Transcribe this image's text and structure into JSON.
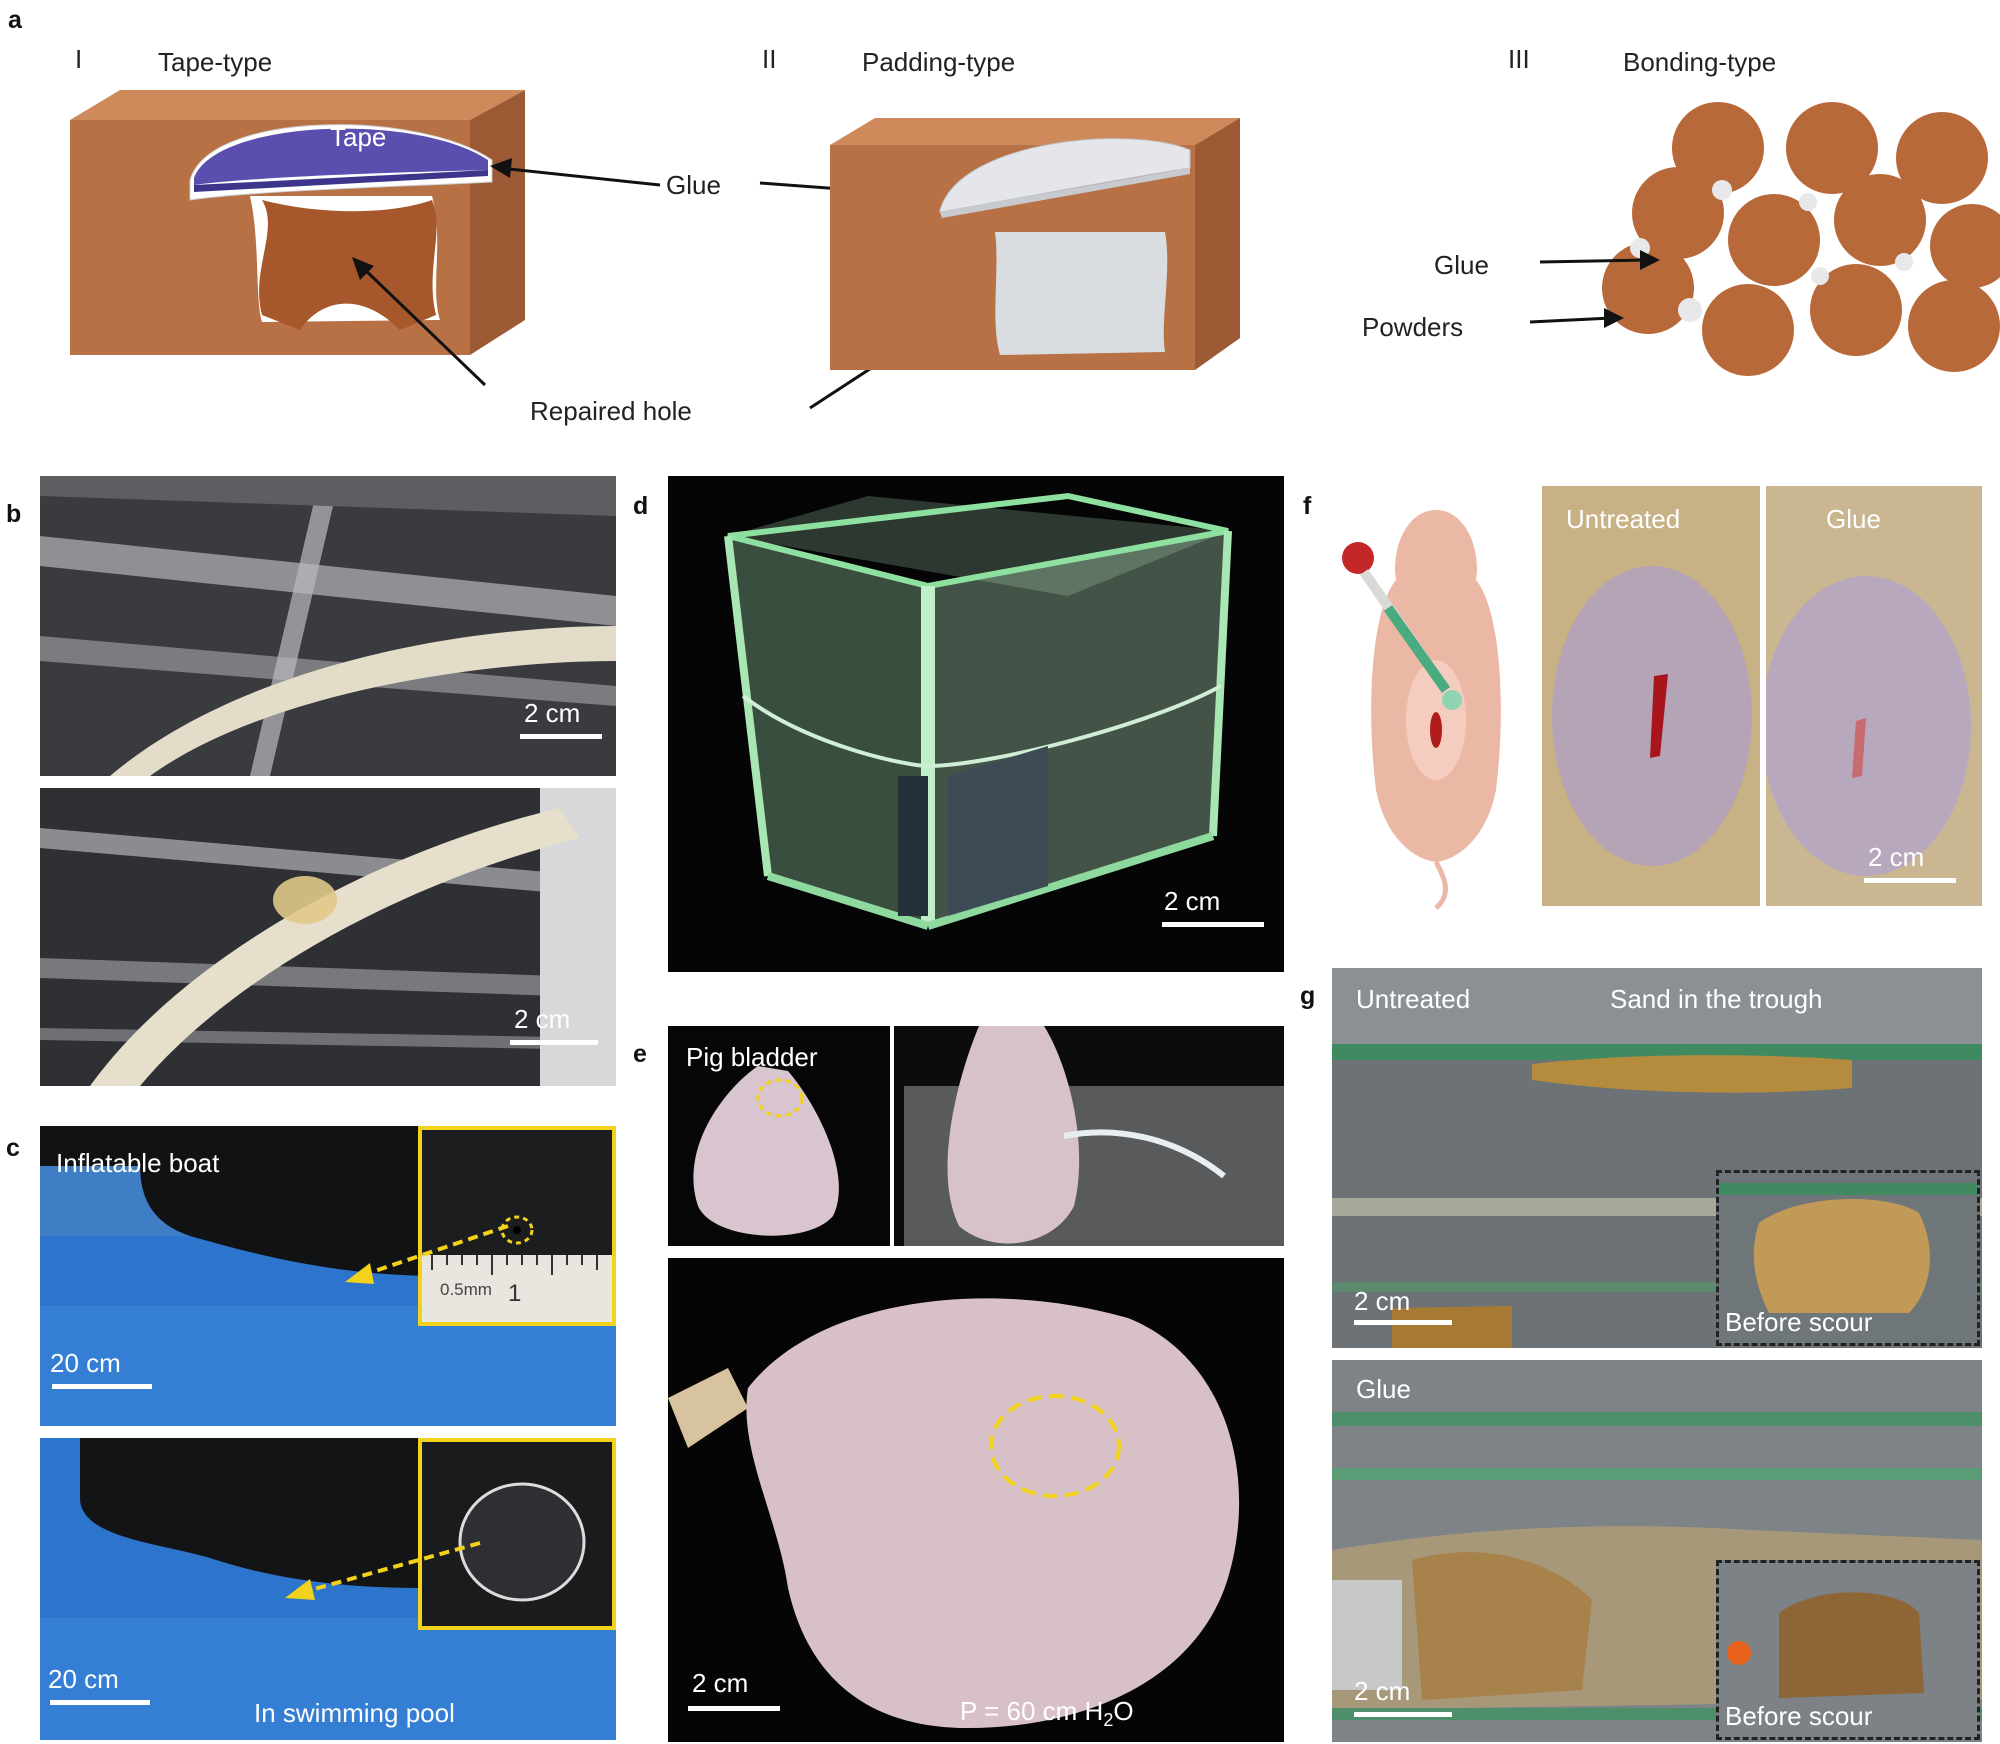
{
  "panels": {
    "a": {
      "label": "a",
      "types": [
        {
          "numeral": "I",
          "name": "Tape-type"
        },
        {
          "numeral": "II",
          "name": "Padding-type"
        },
        {
          "numeral": "III",
          "name": "Bonding-type"
        }
      ],
      "tape_text": "Tape",
      "glue_text": "Glue",
      "repaired_hole_text": "Repaired hole",
      "glue_text_iii": "Glue",
      "powders_text": "Powders"
    },
    "b": {
      "label": "b",
      "scale_top": "2 cm",
      "scale_bottom": "2 cm"
    },
    "c": {
      "label": "c",
      "top_caption": "Inflatable boat",
      "scale_top": "20 cm",
      "ruler_text": "0.5mm",
      "ruler_mark": "1",
      "scale_bottom": "20 cm",
      "bottom_caption": "In swimming pool"
    },
    "d": {
      "label": "d",
      "scale": "2 cm"
    },
    "e": {
      "label": "e",
      "top_caption": "Pig bladder",
      "scale": "2 cm",
      "pressure_prefix": "P = 60 cm H",
      "pressure_sub": "2",
      "pressure_suffix": "O"
    },
    "f": {
      "label": "f",
      "untreated": "Untreated",
      "glue": "Glue",
      "scale": "2 cm"
    },
    "g": {
      "label": "g",
      "untreated": "Untreated",
      "sand_caption": "Sand in the trough",
      "scale_top": "2 cm",
      "before_scour_top": "Before scour",
      "glue": "Glue",
      "scale_bottom": "2 cm",
      "before_scour_bottom": "Before scour"
    }
  },
  "colors": {
    "wood": "#b87045",
    "tape": "#5a4faf",
    "glue": "#d9dce0",
    "yellow_marker": "#f2d21b"
  }
}
